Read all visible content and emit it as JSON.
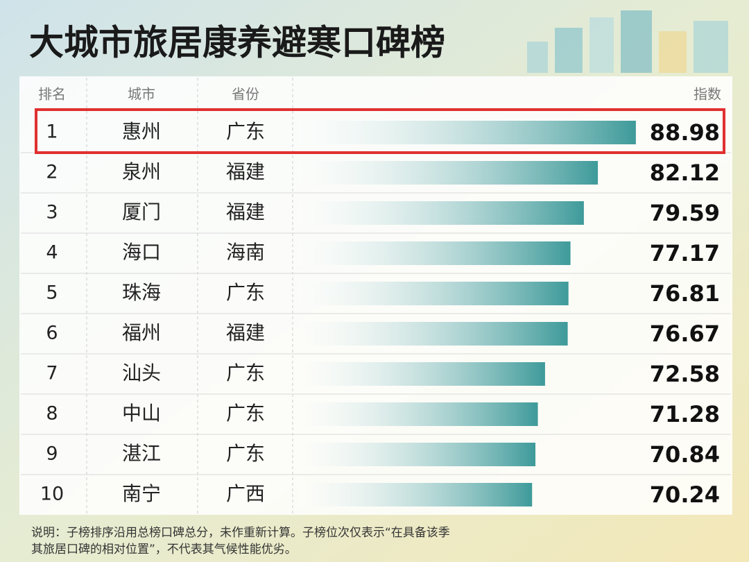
{
  "chart_data": {
    "type": "bar",
    "orientation": "horizontal",
    "title": "大城市旅居康养避寒口碑榜",
    "headers": [
      "排名",
      "城市",
      "省份",
      "指数"
    ],
    "ranks": [
      1,
      2,
      3,
      4,
      5,
      6,
      7,
      8,
      9,
      10
    ],
    "categories": [
      "惠州",
      "泉州",
      "厦门",
      "海口",
      "珠海",
      "福州",
      "汕头",
      "中山",
      "湛江",
      "南宁"
    ],
    "provinces": [
      "广东",
      "福建",
      "福建",
      "海南",
      "广东",
      "福建",
      "广东",
      "广东",
      "广东",
      "广西"
    ],
    "values": [
      88.98,
      82.12,
      79.59,
      77.17,
      76.81,
      76.67,
      72.58,
      71.28,
      70.84,
      70.24
    ],
    "color": "#3e9a9a",
    "xlim": [
      28,
      90
    ],
    "note": [
      "说明：子榜排序沿用总榜口碑总分，未作重新计算。子榜位次仅表示“在具备该季",
      "其旅居口碑的相对位置”，不代表其气候性能优劣。"
    ]
  }
}
